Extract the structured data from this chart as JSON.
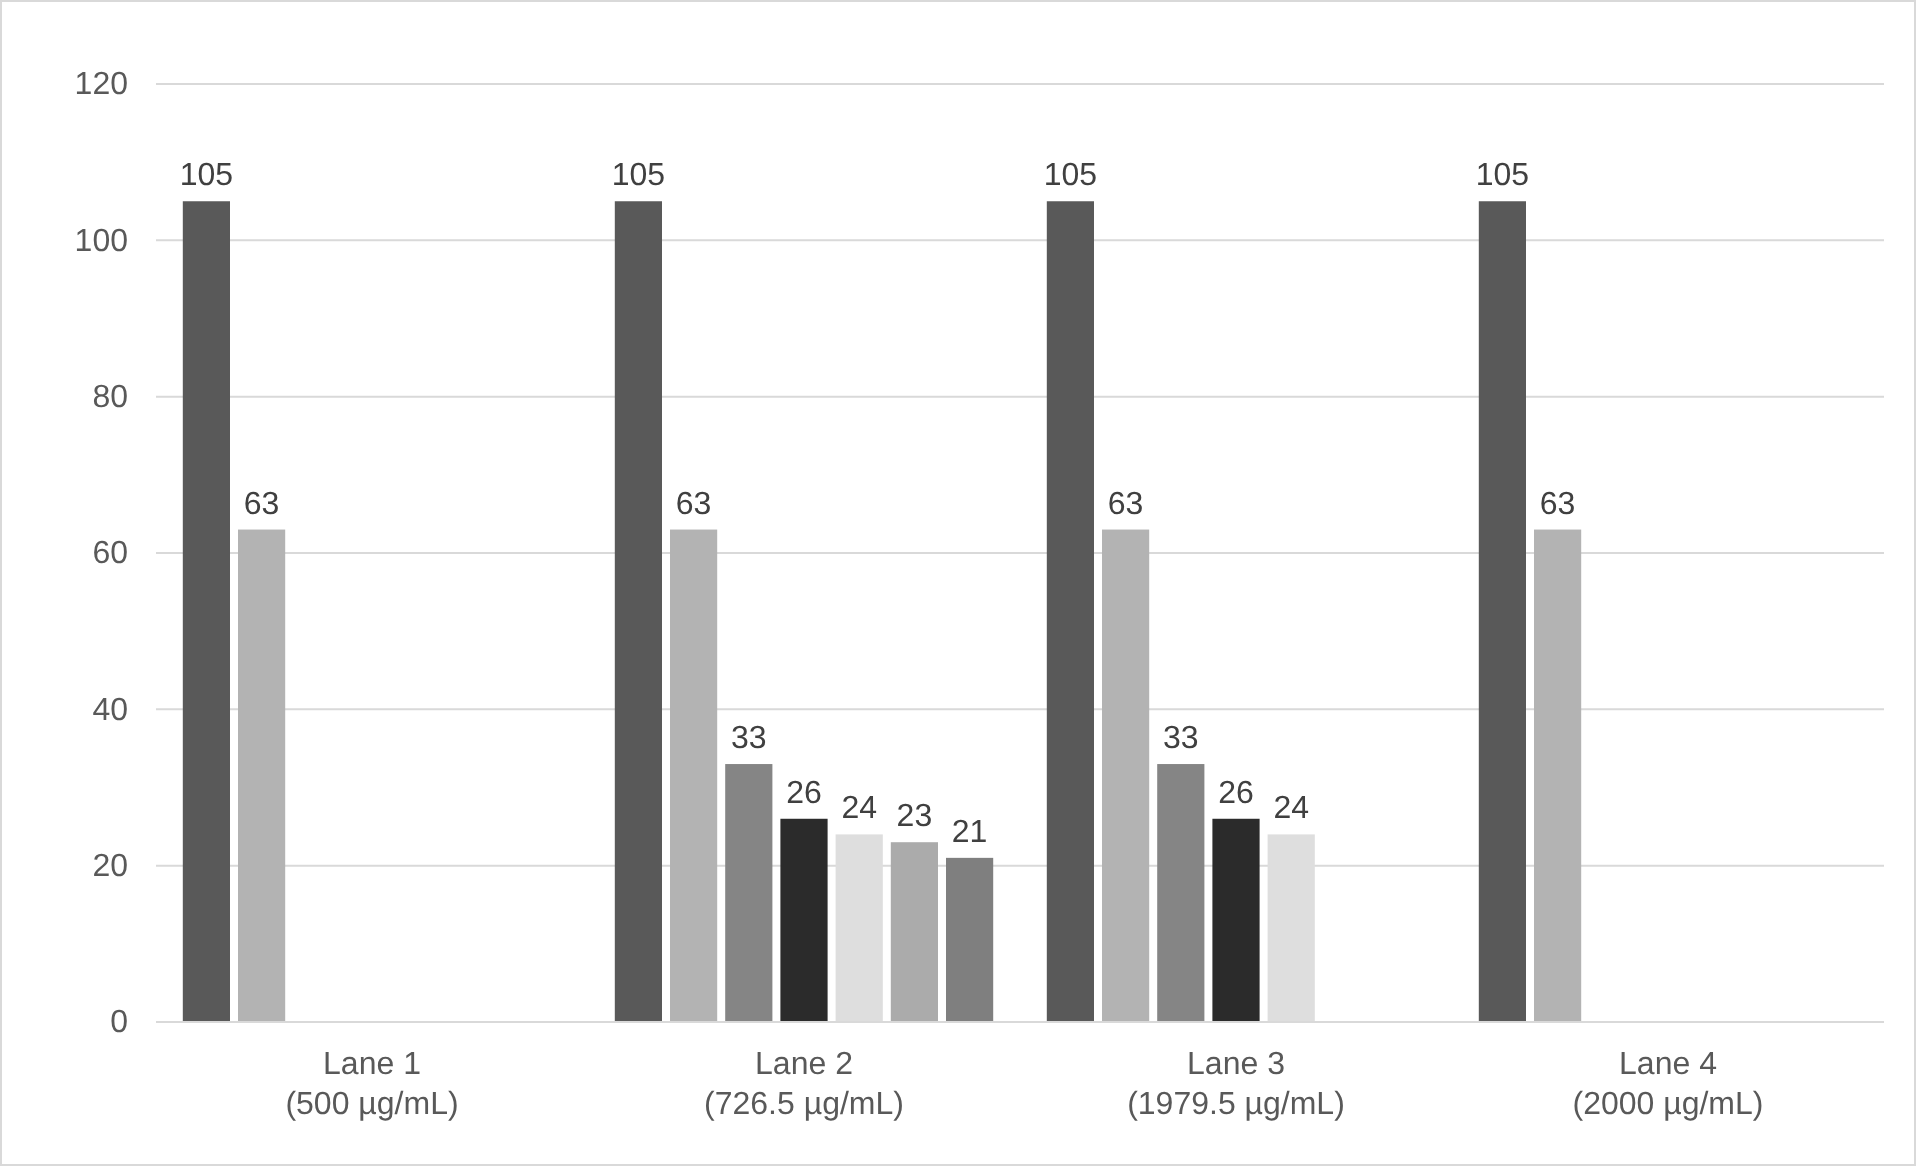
{
  "chart_data": {
    "type": "bar",
    "categories": [
      "Lane 1\n(500 µg/mL)",
      "Lane 2\n(726.5 µg/mL)",
      "Lane 3\n(1979.5 µg/mL)",
      "Lane 4\n(2000 µg/mL)"
    ],
    "series": [
      {
        "color": "#595959",
        "values": [
          105,
          105,
          105,
          105
        ]
      },
      {
        "color": "#b3b3b3",
        "values": [
          63,
          63,
          63,
          63
        ]
      },
      {
        "color": "#858585",
        "values": [
          null,
          33,
          33,
          null
        ]
      },
      {
        "color": "#2b2b2b",
        "values": [
          null,
          26,
          26,
          null
        ]
      },
      {
        "color": "#dedede",
        "values": [
          null,
          24,
          24,
          null
        ]
      },
      {
        "color": "#ababab",
        "values": [
          null,
          23,
          null,
          null
        ]
      },
      {
        "color": "#7f7f7f",
        "values": [
          null,
          21,
          null,
          null
        ]
      }
    ],
    "ylim": [
      0,
      120
    ],
    "yticks": [
      0,
      20,
      40,
      60,
      80,
      100,
      120
    ],
    "grid": "y",
    "data_labels": true
  }
}
